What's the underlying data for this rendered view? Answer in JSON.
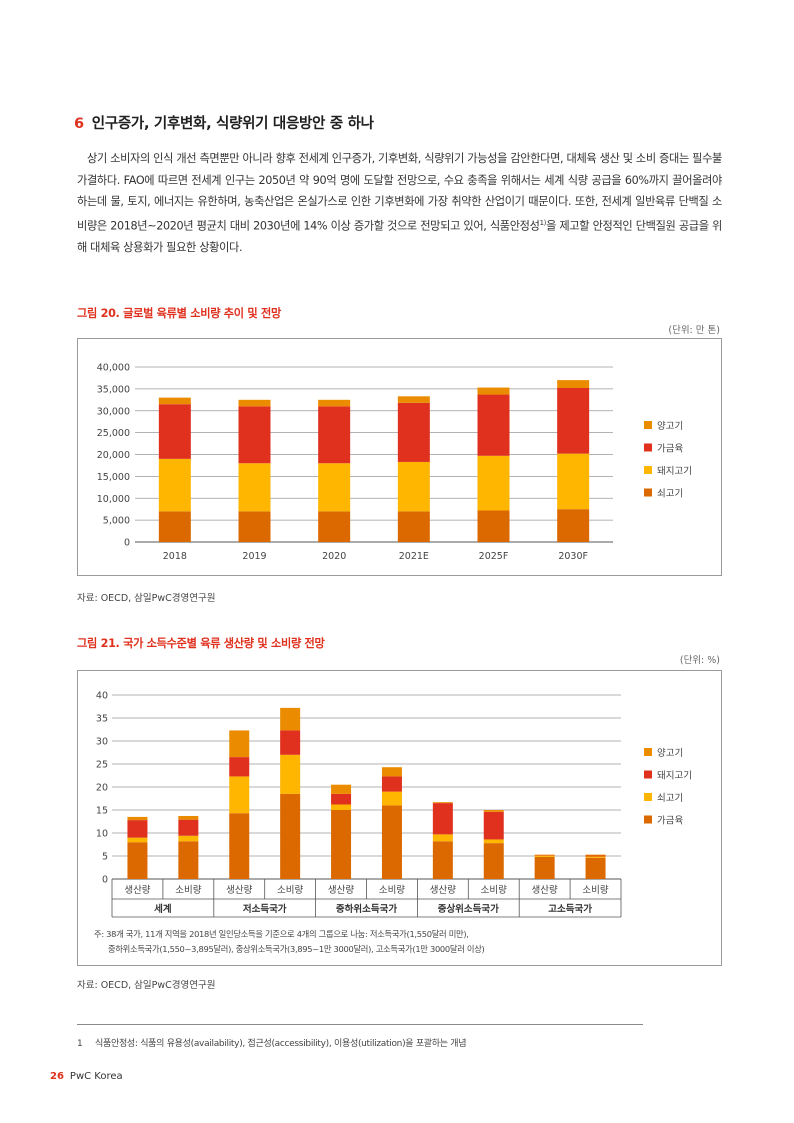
{
  "section": {
    "number": "6",
    "title": "인구증가, 기후변화, 식량위기 대응방안 중 하나"
  },
  "body": {
    "part1": "상기 소비자의 인식 개선 측면뿐만 아니라 향후 전세계 인구증가, 기후변화, 식량위기 가능성을 감안한다면, 대체육 생산 및 소비 증대는 필수불가결하다. FAO에 따르면 전세계 인구는 2050년 약 90억 명에 도달할 전망으로, 수요 충족을 위해서는 세계 식량 공급을 60%까지 끌어올려야 하는데 물, 토지, 에너지는 유한하며, 농축산업은 온실가스로 인한 기후변화에 가장 취약한 산업이기 때문이다. 또한, 전세계 일반육류 단백질 소비량은 2018년~2020년 평균치 대비 2030년에 14% 이상 증가할 것으로 전망되고 있어, 식품안정성",
    "sup": "1)",
    "part2": "을 제고할 안정적인 단백질원 공급을 위해 대체육 상용화가 필요한 상황이다."
  },
  "figure20": {
    "title": "그림 20. 글로벌 육류별 소비량 추이 및 전망",
    "unit": "(단위: 만 톤)",
    "source": "자료: OECD, 삼일PwC경영연구원"
  },
  "figure21": {
    "title": "그림 21. 국가 소득수준별 육류 생산량 및 소비량 전망",
    "unit": "(단위: %)",
    "source": "자료: OECD, 삼일PwC경영연구원",
    "note_line1": "주: 38개 국가, 11개 지역을 2018년 일인당소득을 기준으로 4개의 그룹으로 나눔: 저소득국가(1,550달러 미만),",
    "note_line2": "중하위소득국가(1,550~3,895달러), 중상위소득국가(3,895~1만 3000달러), 고소득국가(1만 3000달러 이상)"
  },
  "footnote": {
    "number": "1",
    "text": "식품안정성: 식품의 유용성(availability), 접근성(accessibility), 이용성(utilization)을 포괄하는 개념"
  },
  "footer": {
    "page": "26",
    "brand": "PwC Korea"
  },
  "chart_data": [
    {
      "type": "bar",
      "stacked": true,
      "categories": [
        "2018",
        "2019",
        "2020",
        "2021E",
        "2025F",
        "2030F"
      ],
      "series": [
        {
          "name": "쇠고기",
          "color": "#dc6900",
          "values": [
            7000,
            7000,
            7000,
            7000,
            7200,
            7500
          ]
        },
        {
          "name": "돼지고기",
          "color": "#ffb600",
          "values": [
            12000,
            11000,
            11000,
            11300,
            12500,
            12700
          ]
        },
        {
          "name": "가금육",
          "color": "#e0301e",
          "values": [
            12500,
            13000,
            13000,
            13500,
            14000,
            15000
          ]
        },
        {
          "name": "양고기",
          "color": "#eb8c00",
          "values": [
            1500,
            1500,
            1500,
            1500,
            1600,
            1800
          ]
        }
      ],
      "legend_order": [
        "양고기",
        "가금육",
        "돼지고기",
        "쇠고기"
      ],
      "ylim": [
        0,
        40000
      ],
      "yticks": [
        "0",
        "5,000",
        "10,000",
        "15,000",
        "20,000",
        "25,000",
        "30,000",
        "35,000",
        "40,000"
      ],
      "grid": true,
      "legend": "right"
    },
    {
      "type": "bar",
      "stacked": true,
      "categories": [
        "생산량",
        "소비량",
        "생산량",
        "소비량",
        "생산량",
        "소비량",
        "생산량",
        "소비량",
        "생산량",
        "소비량"
      ],
      "groups": [
        "세계",
        "저소득국가",
        "중하위소득국가",
        "중상위소득국가",
        "고소득국가"
      ],
      "series": [
        {
          "name": "가금육",
          "color": "#dc6900",
          "values": [
            8.0,
            8.2,
            14.3,
            18.5,
            15.0,
            16.0,
            8.2,
            7.8,
            4.8,
            4.6
          ]
        },
        {
          "name": "쇠고기",
          "color": "#ffb600",
          "values": [
            1.0,
            1.2,
            8.0,
            8.5,
            1.2,
            3.0,
            1.5,
            0.8,
            0.3,
            0.3
          ]
        },
        {
          "name": "돼지고기",
          "color": "#e0301e",
          "values": [
            3.8,
            3.5,
            4.2,
            5.3,
            2.3,
            3.3,
            6.8,
            6.0,
            0.1,
            0.2
          ]
        },
        {
          "name": "양고기",
          "color": "#eb8c00",
          "values": [
            0.7,
            0.8,
            5.8,
            4.9,
            2.0,
            2.0,
            0.2,
            0.4,
            0.1,
            0.2
          ]
        }
      ],
      "legend_order": [
        "양고기",
        "돼지고기",
        "쇠고기",
        "가금육"
      ],
      "ylim": [
        0,
        40
      ],
      "yticks": [
        "0",
        "5",
        "10",
        "15",
        "20",
        "25",
        "30",
        "35",
        "40"
      ],
      "grid": true,
      "legend": "right"
    }
  ]
}
